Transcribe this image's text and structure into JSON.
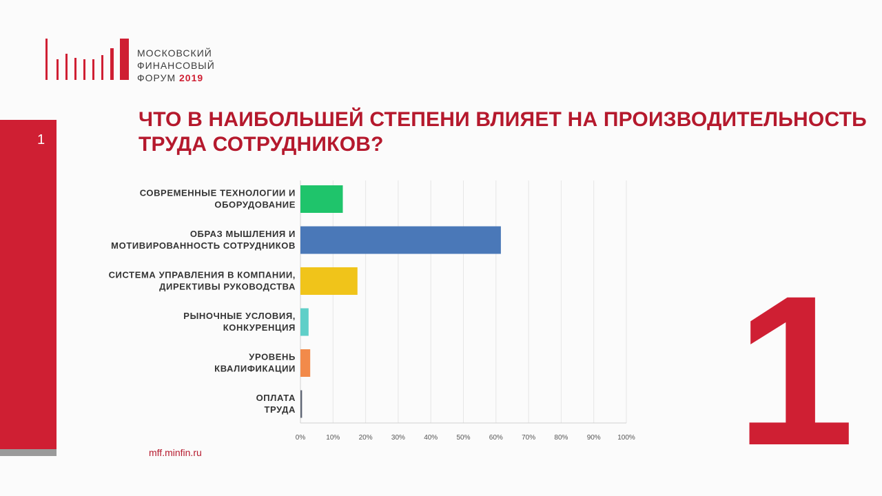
{
  "slide": {
    "number": "1"
  },
  "logo": {
    "line1": "МОСКОВСКИЙ",
    "line2": "ФИНАНСОВЫЙ",
    "line3": "ФОРУМ",
    "year": "2019",
    "bar_color": "#cf1f33"
  },
  "title": "ЧТО В НАИБОЛЬШЕЙ СТЕПЕНИ ВЛИЯЕТ НА ПРОИЗВОДИТЕЛЬНОСТЬ ТРУДА СОТРУДНИКОВ?",
  "big_number": "1",
  "footer": {
    "url": "mff.minfin.ru"
  },
  "chart_data": {
    "type": "bar",
    "orientation": "horizontal",
    "categories": [
      [
        "СОВРЕМЕННЫЕ ТЕХНОЛОГИИ И",
        "ОБОРУДОВАНИЕ"
      ],
      [
        "ОБРАЗ МЫШЛЕНИЯ И",
        "МОТИВИРОВАННОСТЬ СОТРУДНИКОВ"
      ],
      [
        "СИСТЕМА УПРАВЛЕНИЯ В КОМПАНИИ,",
        "ДИРЕКТИВЫ РУКОВОДСТВА"
      ],
      [
        "РЫНОЧНЫЕ УСЛОВИЯ,",
        "КОНКУРЕНЦИЯ"
      ],
      [
        "УРОВЕНЬ",
        "КВАЛИФИКАЦИИ"
      ],
      [
        "ОПЛАТА",
        "ТРУДА"
      ]
    ],
    "values": [
      13,
      61.5,
      17.5,
      2.5,
      3,
      0.5
    ],
    "colors": [
      "#1fc46b",
      "#4a78b8",
      "#f0c41a",
      "#5fcfc8",
      "#f28a4a",
      "#5f6675"
    ],
    "xlim": [
      0,
      100
    ],
    "xticks": [
      "0%",
      "10%",
      "20%",
      "30%",
      "40%",
      "50%",
      "60%",
      "70%",
      "80%",
      "90%",
      "100%"
    ],
    "grid": true
  }
}
